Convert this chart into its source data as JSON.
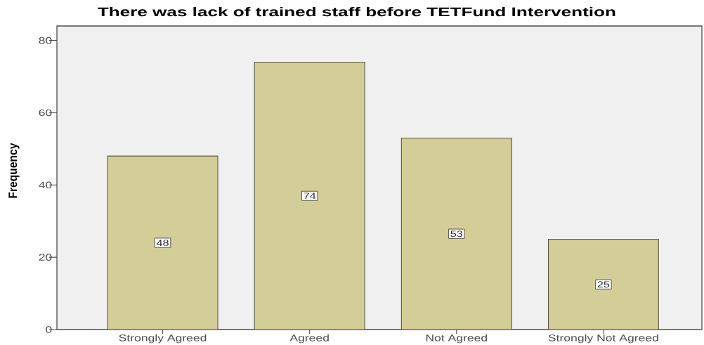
{
  "chart_data": {
    "type": "bar",
    "title": "There was lack of trained staff before TETFund Intervention",
    "ylabel": "Frequency",
    "categories": [
      "Strongly Agreed",
      "Agreed",
      "Not Agreed",
      "Strongly Not Agreed"
    ],
    "values": [
      48,
      74,
      53,
      25
    ],
    "color": "#d3ce97",
    "ylim": [
      0,
      84
    ],
    "yticks": [
      0,
      20,
      40,
      60,
      80
    ],
    "data_labels": true
  }
}
